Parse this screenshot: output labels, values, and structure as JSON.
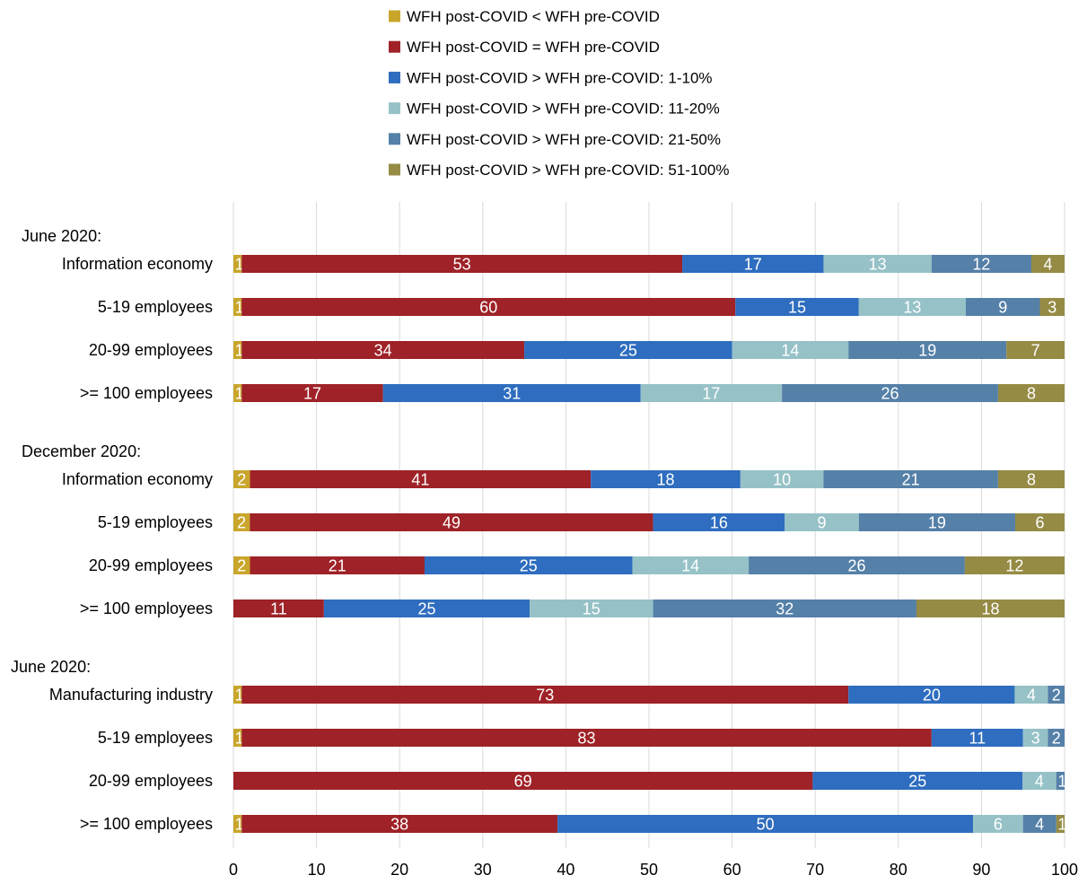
{
  "chart_data": {
    "type": "bar",
    "orientation": "horizontal",
    "stacked": true,
    "legend_position": "top",
    "grid": true,
    "xlim": [
      0,
      100
    ],
    "xticks": [
      0,
      10,
      20,
      30,
      40,
      50,
      60,
      70,
      80,
      90,
      100
    ],
    "groups": [
      "June 2020:",
      "December 2020:",
      "June 2020:"
    ],
    "categories": [
      "Information economy",
      "5-19 employees",
      "20-99 employees",
      ">= 100 employees",
      "Information economy",
      "5-19 employees",
      "20-99 employees",
      ">= 100 employees",
      "Manufacturing industry",
      "5-19 employees",
      "20-99 employees",
      ">= 100 employees"
    ],
    "category_group": [
      0,
      0,
      0,
      0,
      1,
      1,
      1,
      1,
      2,
      2,
      2,
      2
    ],
    "series": [
      {
        "name": "WFH post-COVID < WFH pre-COVID",
        "color": "#c9a62b",
        "values": [
          1,
          1,
          1,
          1,
          2,
          2,
          2,
          0,
          1,
          1,
          0,
          1
        ]
      },
      {
        "name": "WFH post-COVID = WFH pre-COVID",
        "color": "#9e2227",
        "values": [
          53,
          60,
          34,
          17,
          41,
          49,
          21,
          11,
          73,
          83,
          69,
          38
        ]
      },
      {
        "name": "WFH post-COVID > WFH pre-COVID: 1-10%",
        "color": "#2e6dbf",
        "values": [
          17,
          15,
          25,
          31,
          18,
          16,
          25,
          25,
          20,
          11,
          25,
          50
        ]
      },
      {
        "name": "WFH post-COVID > WFH pre-COVID: 11-20%",
        "color": "#96c2c7",
        "values": [
          13,
          13,
          14,
          17,
          10,
          9,
          14,
          15,
          4,
          3,
          4,
          6
        ]
      },
      {
        "name": "WFH post-COVID > WFH pre-COVID: 21-50%",
        "color": "#5580a8",
        "values": [
          12,
          9,
          19,
          26,
          21,
          19,
          26,
          32,
          2,
          2,
          1,
          4
        ]
      },
      {
        "name": "WFH post-COVID > WFH pre-COVID: 51-100%",
        "color": "#958b45",
        "values": [
          4,
          3,
          7,
          8,
          8,
          6,
          12,
          18,
          0,
          0,
          0,
          1
        ]
      }
    ]
  }
}
